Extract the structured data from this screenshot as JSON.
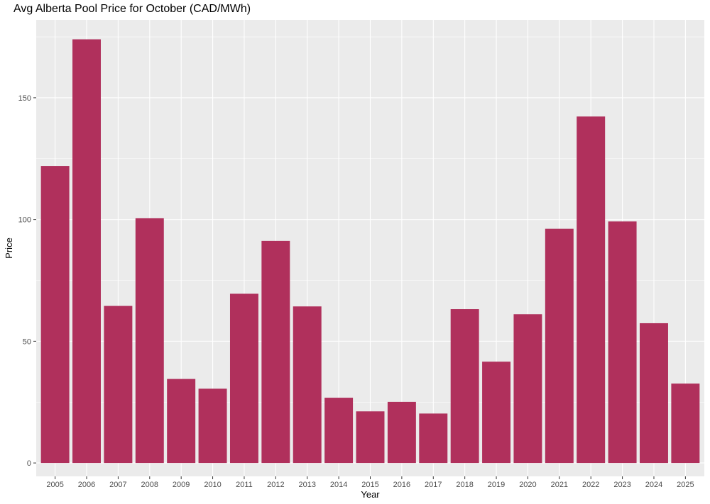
{
  "chart_data": {
    "type": "bar",
    "title": "Avg Alberta Pool Price for October (CAD/MWh)",
    "xlabel": "Year",
    "ylabel": "Price",
    "categories": [
      "2005",
      "2006",
      "2007",
      "2008",
      "2009",
      "2010",
      "2011",
      "2012",
      "2013",
      "2014",
      "2015",
      "2016",
      "2017",
      "2018",
      "2019",
      "2020",
      "2021",
      "2022",
      "2023",
      "2024",
      "2025"
    ],
    "values": [
      122,
      174,
      64.5,
      100.5,
      34.5,
      30.5,
      69.5,
      91.2,
      64.3,
      26.8,
      21.2,
      25.1,
      20.3,
      63.2,
      41.6,
      61.1,
      96.2,
      142.3,
      99.2,
      57.4,
      32.6
    ],
    "yticks": [
      0,
      50,
      100,
      150
    ],
    "ylim": [
      -5.5,
      182
    ],
    "grid": true,
    "bar_color": "#B0305C",
    "panel_color": "#EBEBEB",
    "grid_color": "#FFFFFF"
  }
}
